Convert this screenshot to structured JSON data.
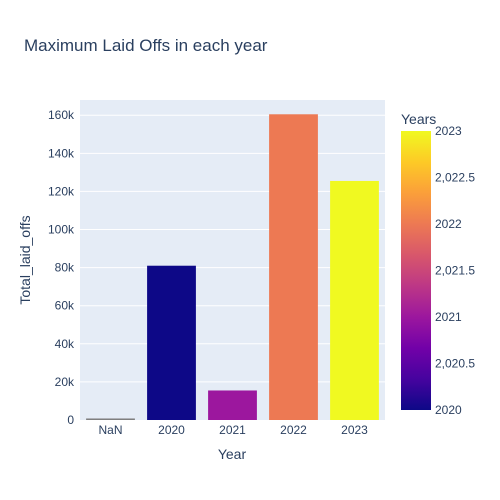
{
  "chart_data": {
    "type": "bar",
    "title": "Maximum Laid Offs in each year",
    "xlabel": "Year",
    "ylabel": "Total_laid_offs",
    "categories": [
      "NaN",
      "2020",
      "2021",
      "2022",
      "2023"
    ],
    "values": [
      800,
      80998,
      15500,
      160500,
      125500
    ],
    "color_values": [
      null,
      2020,
      2021,
      2022,
      2023
    ],
    "ylim": [
      0,
      168000
    ],
    "yticks": [
      0,
      20000,
      40000,
      60000,
      80000,
      100000,
      120000,
      140000,
      160000
    ],
    "ytick_labels": [
      "0",
      "20k",
      "40k",
      "60k",
      "80k",
      "100k",
      "120k",
      "140k",
      "160k"
    ],
    "grid": true,
    "plot_background": "#e5ecf6",
    "colorscale": [
      "#0d0887",
      "#46039f",
      "#7201a8",
      "#9c179e",
      "#bd3786",
      "#d8576b",
      "#ed7953",
      "#fb9f3a",
      "#fdca26",
      "#f0f921"
    ],
    "colorbar": {
      "title": "Years",
      "range": [
        2020,
        2023
      ],
      "ticks": [
        2020,
        2020.5,
        2021,
        2021.5,
        2022,
        2022.5,
        2023
      ],
      "tick_labels": [
        "2020",
        "2,020.5",
        "2021",
        "2,021.5",
        "2022",
        "2,022.5",
        "2023"
      ]
    }
  }
}
